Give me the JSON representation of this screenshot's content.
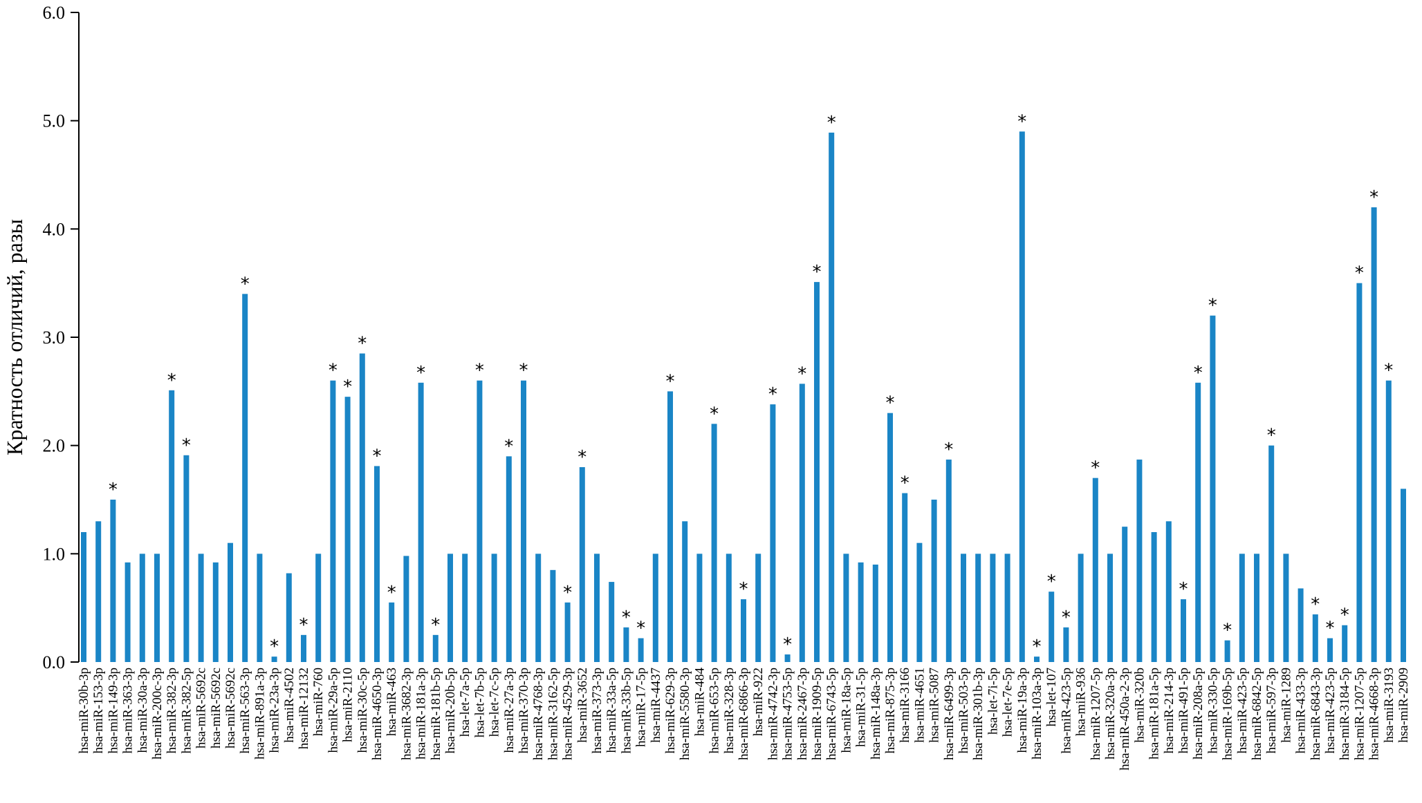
{
  "chart_data": {
    "type": "bar",
    "title": "",
    "xlabel": "",
    "ylabel": "Кратность отличий, разы",
    "ylim": [
      0,
      6
    ],
    "yticks": [
      "0.0",
      "1.0",
      "2.0",
      "3.0",
      "4.0",
      "5.0",
      "6.0"
    ],
    "grid": false,
    "bar_color": "#1a85c6",
    "categories": [
      "hsa-miR-30b-3p",
      "hsa-miR-153-3p",
      "hsa-miR-149-3p",
      "hsa-miR-363-3p",
      "hsa-miR-30a-3p",
      "hsa-miR-200c-3p",
      "hsa-miR-382-3p",
      "hsa-miR-382-5p",
      "hsa-miR-5692c",
      "hsa-miR-5692c",
      "hsa-miR-5692c",
      "hsa-miR-563-3p",
      "hsa-miR-891a-3p",
      "hsa-miR-23a-3p",
      "hsa-miR-4502",
      "hsa-miR-12132",
      "hsa-miR-760",
      "hsa-miR-29a-5p",
      "hsa-miR-2110",
      "hsa-miR-30c-5p",
      "hsa-miR-4650-3p",
      "hsa-miR-463",
      "hsa-miR-3682-3p",
      "hsa-miR-181a-3p",
      "hsa-miR-181b-5p",
      "hsa-miR-20b-5p",
      "hsa-let-7a-5p",
      "hsa-let-7b-5p",
      "hsa-let-7c-5p",
      "hsa-miR-27a-3p",
      "hsa-miR-370-3p",
      "hsa-miR-4768-3p",
      "hsa-miR-3162-5p",
      "hsa-miR-4529-3p",
      "hsa-miR-3652",
      "hsa-miR-373-3p",
      "hsa-miR-33a-5p",
      "hsa-miR-33b-5p",
      "hsa-miR-17-5p",
      "hsa-miR-4437",
      "hsa-miR-629-3p",
      "hsa-miR-5580-3p",
      "hsa-miR-484",
      "hsa-miR-653-5p",
      "hsa-miR-328-3p",
      "hsa-miR-6866-3p",
      "hsa-miR-922",
      "hsa-miR-4742-3p",
      "hsa-miR-4753-5p",
      "hsa-miR-2467-3p",
      "hsa-miR-1909-5p",
      "hsa-miR-6743-5p",
      "hsa-miR-18a-5p",
      "hsa-miR-31-5p",
      "hsa-miR-148a-3p",
      "hsa-miR-875-3p",
      "hsa-miR-3166",
      "hsa-miR-4651",
      "hsa-miR-5087",
      "hsa-miR-6499-3p",
      "hsa-miR-503-5p",
      "hsa-miR-301b-3p",
      "hsa-let-7i-5p",
      "hsa-let-7e-5p",
      "hsa-miR-19a-3p",
      "hsa-miR-103a-3p",
      "hsa-let-107",
      "hsa-miR-423-5p",
      "hsa-miR-936",
      "hsa-miR-1207-5p",
      "hsa-miR-320a-3p",
      "hsa-miR-450a-2-3p",
      "hsa-miR-320b",
      "hsa-miR-181a-5p",
      "hsa-miR-214-3p",
      "hsa-miR-491-5p",
      "hsa-miR-208a-5p",
      "hsa-miR-330-5p",
      "hsa-miR-169b-5p",
      "hsa-miR-423-5p",
      "hsa-miR-6842-5p",
      "hsa-miR-597-3p",
      "hsa-miR-1289",
      "hsa-miR-433-3p",
      "hsa-miR-6843-3p",
      "hsa-miR-423-5p",
      "hsa-miR-3184-5p",
      "hsa-miR-1207-5p",
      "hsa-miR-4668-3p",
      "hsa-miR-3193",
      "hsa-miR-2909"
    ],
    "values": [
      1.2,
      1.3,
      1.5,
      0.92,
      1.0,
      1.0,
      2.51,
      1.91,
      1.0,
      0.92,
      1.1,
      3.4,
      1.0,
      0.05,
      0.82,
      0.25,
      1.0,
      2.6,
      2.45,
      2.85,
      1.81,
      0.55,
      0.98,
      2.58,
      0.25,
      1.0,
      1.0,
      2.6,
      1.0,
      1.9,
      2.6,
      1.0,
      0.85,
      0.55,
      1.8,
      1.0,
      0.74,
      0.32,
      0.22,
      1.0,
      2.5,
      1.3,
      1.0,
      2.2,
      1.0,
      0.58,
      1.0,
      2.38,
      0.07,
      2.57,
      3.51,
      4.89,
      1.0,
      0.92,
      0.9,
      2.3,
      1.56,
      1.1,
      1.5,
      1.87,
      1.0,
      1.0,
      1.0,
      1.0,
      4.9,
      0.05,
      0.65,
      0.32,
      1.0,
      1.7,
      1.0,
      1.25,
      1.87,
      1.2,
      1.3,
      0.58,
      2.58,
      3.2,
      0.2,
      1.0,
      1.0,
      2.0,
      1.0,
      0.68,
      0.44,
      0.22,
      0.34,
      3.5,
      4.2,
      2.6,
      1.6
    ],
    "significant": [
      false,
      false,
      true,
      false,
      false,
      false,
      true,
      true,
      false,
      false,
      false,
      true,
      false,
      true,
      false,
      true,
      false,
      true,
      true,
      true,
      true,
      true,
      false,
      true,
      true,
      false,
      false,
      true,
      false,
      true,
      true,
      false,
      false,
      true,
      true,
      false,
      false,
      true,
      true,
      false,
      true,
      false,
      false,
      true,
      false,
      true,
      false,
      true,
      true,
      true,
      true,
      true,
      false,
      false,
      false,
      true,
      true,
      false,
      false,
      true,
      false,
      false,
      false,
      false,
      true,
      true,
      true,
      true,
      false,
      true,
      false,
      false,
      false,
      false,
      false,
      true,
      true,
      true,
      true,
      false,
      false,
      true,
      false,
      false,
      true,
      true,
      true,
      true,
      true,
      true,
      false
    ],
    "marker": "*"
  }
}
